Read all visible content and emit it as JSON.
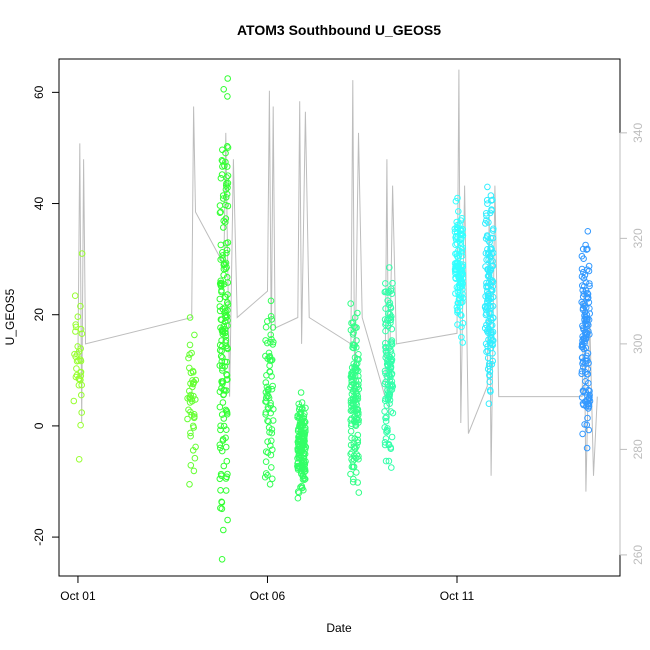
{
  "chart_data": {
    "type": "scatter",
    "title": "ATOM3 Southbound U_GEOS5",
    "xlabel": "Date",
    "ylabel": "U_GEOS5",
    "x_ticks": [
      {
        "value": 0,
        "label": "Oct 01"
      },
      {
        "value": 5,
        "label": "Oct 06"
      },
      {
        "value": 10,
        "label": "Oct 11"
      }
    ],
    "xlim": [
      -0.5,
      14.3
    ],
    "ylim": [
      -27,
      66
    ],
    "y_ticks": [
      -20,
      0,
      20,
      40,
      60
    ],
    "y2lim": [
      256,
      354
    ],
    "y2_ticks": [
      260,
      280,
      300,
      320,
      340
    ],
    "grid": false,
    "series": [
      {
        "color": "#99ff33",
        "clusters": [
          {
            "x": 0.0,
            "ymin": -6,
            "ymax": 31,
            "n": 35
          }
        ]
      },
      {
        "color": "#66ff33",
        "clusters": [
          {
            "x": 3.0,
            "ymin": -10.5,
            "ymax": 19.5,
            "n": 45
          }
        ]
      },
      {
        "color": "#33ff33",
        "clusters": [
          {
            "x": 3.85,
            "ymin": -24,
            "ymax": 62.5,
            "n": 170
          }
        ]
      },
      {
        "color": "#33ff55",
        "clusters": [
          {
            "x": 5.05,
            "ymin": -10.5,
            "ymax": 22.5,
            "n": 70
          }
        ]
      },
      {
        "color": "#33ff66",
        "clusters": [
          {
            "x": 5.9,
            "ymin": -13,
            "ymax": 6,
            "n": 150
          }
        ]
      },
      {
        "color": "#33ff88",
        "clusters": [
          {
            "x": 7.3,
            "ymin": -12,
            "ymax": 22,
            "n": 140
          }
        ]
      },
      {
        "color": "#33ffaa",
        "clusters": [
          {
            "x": 8.2,
            "ymin": -7.5,
            "ymax": 28.5,
            "n": 120
          }
        ]
      },
      {
        "color": "#33ffff",
        "clusters": [
          {
            "x": 10.05,
            "ymin": 15,
            "ymax": 41,
            "n": 120
          }
        ]
      },
      {
        "color": "#33eeff",
        "clusters": [
          {
            "x": 10.85,
            "ymin": 4,
            "ymax": 43,
            "n": 140
          }
        ]
      },
      {
        "color": "#3399ff",
        "clusters": [
          {
            "x": 13.4,
            "ymin": -4,
            "ymax": 35,
            "n": 130
          }
        ]
      }
    ],
    "secondary_line": {
      "color": "#bdbdbd",
      "points": [
        [
          0.0,
          298
        ],
        [
          0.05,
          338
        ],
        [
          0.1,
          285
        ],
        [
          0.15,
          335
        ],
        [
          0.2,
          300
        ],
        [
          3.0,
          305
        ],
        [
          3.05,
          345
        ],
        [
          3.1,
          325
        ],
        [
          3.85,
          315
        ],
        [
          3.9,
          340
        ],
        [
          4.0,
          290
        ],
        [
          4.1,
          335
        ],
        [
          4.2,
          305
        ],
        [
          5.0,
          310
        ],
        [
          5.05,
          348
        ],
        [
          5.1,
          300
        ],
        [
          5.15,
          345
        ],
        [
          5.2,
          303
        ],
        [
          5.8,
          305
        ],
        [
          5.85,
          346
        ],
        [
          5.9,
          300
        ],
        [
          6.0,
          344
        ],
        [
          6.1,
          305
        ],
        [
          7.2,
          300
        ],
        [
          7.25,
          350
        ],
        [
          7.3,
          290
        ],
        [
          7.4,
          340
        ],
        [
          7.5,
          305
        ],
        [
          8.1,
          290
        ],
        [
          8.15,
          335
        ],
        [
          8.2,
          285
        ],
        [
          8.3,
          330
        ],
        [
          8.4,
          300
        ],
        [
          10.0,
          302
        ],
        [
          10.05,
          352
        ],
        [
          10.1,
          285
        ],
        [
          10.2,
          330
        ],
        [
          10.3,
          283
        ],
        [
          10.8,
          292
        ],
        [
          10.85,
          325
        ],
        [
          10.9,
          275
        ],
        [
          11.0,
          330
        ],
        [
          11.1,
          290
        ],
        [
          13.3,
          290
        ],
        [
          13.35,
          310
        ],
        [
          13.4,
          272
        ],
        [
          13.5,
          305
        ],
        [
          13.6,
          275
        ],
        [
          13.7,
          290
        ]
      ]
    }
  }
}
